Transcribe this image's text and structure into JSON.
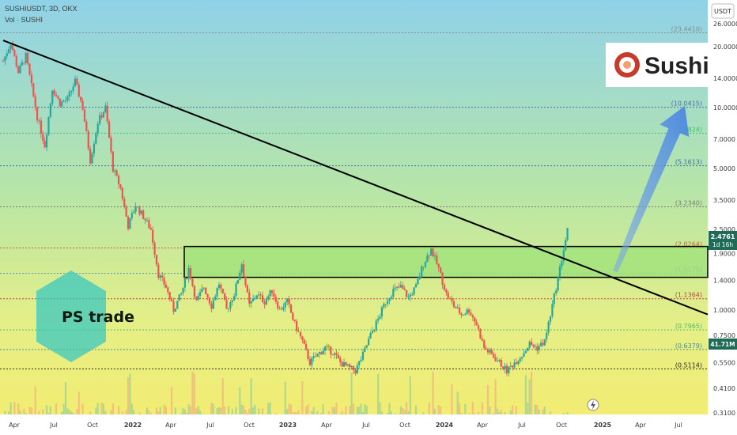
{
  "header": {
    "symbol": "SUSHIUSDT, 3D, OKX",
    "volume_label": "Vol · SUSHI"
  },
  "currency": "USDT",
  "logo_text": "Sushi",
  "brand_text": "PS trade",
  "last_price": {
    "value": "2.4761",
    "countdown": "1d 16h"
  },
  "volume_value": "41.71M",
  "colors": {
    "up": "#26a69a",
    "down": "#ef5350",
    "zone": "#9fe27a",
    "arrow": "#5b8fe0",
    "trendline": "#000000"
  },
  "chart_data": {
    "type": "candlestick",
    "y_scale": "log",
    "y_ticks": [
      "26.0000",
      "20.0000",
      "14.0000",
      "10.0000",
      "7.0000",
      "5.0000",
      "3.5000",
      "2.5000",
      "1.9000",
      "1.4000",
      "1.0000",
      "0.7500",
      "0.5500",
      "0.4100",
      "0.3100"
    ],
    "x_ticks": [
      "Apr",
      "Jul",
      "Oct",
      "2022",
      "Apr",
      "Jul",
      "Oct",
      "2023",
      "Apr",
      "Jul",
      "Oct",
      "2024",
      "Apr",
      "Jul",
      "Oct",
      "2025",
      "Apr",
      "Jul"
    ],
    "fib_levels": [
      {
        "label": "(23.4410)",
        "value": 23.441,
        "color": "#8a8a8a"
      },
      {
        "label": "(10.0415)",
        "value": 10.0415,
        "color": "#4a6fa5"
      },
      {
        "label": "(7.4824)",
        "value": 7.4824,
        "color": "#3fbf6f"
      },
      {
        "label": "(5.1613)",
        "value": 5.1613,
        "color": "#3a6ea5"
      },
      {
        "label": "(3.2340)",
        "value": 3.234,
        "color": "#7a7a7a"
      },
      {
        "label": "(2.0264)",
        "value": 2.0264,
        "color": "#c0603a"
      },
      {
        "label": "(1.5175)",
        "value": 1.5175,
        "color": "#5b8fbf"
      },
      {
        "label": "(1.1364)",
        "value": 1.1364,
        "color": "#c04040"
      },
      {
        "label": "(0.7965)",
        "value": 0.7965,
        "color": "#3fbf6f"
      },
      {
        "label": "(0.6379)",
        "value": 0.6379,
        "color": "#3a8fa5"
      },
      {
        "label": "(0.5114)",
        "value": 0.5114,
        "color": "#2a2a2a"
      }
    ],
    "zone": {
      "top": 2.06,
      "bottom": 1.45
    },
    "trendline": {
      "start": 21.5,
      "end": 0.95
    },
    "price_path": [
      [
        0,
        17
      ],
      [
        2,
        21
      ],
      [
        4,
        15
      ],
      [
        6,
        18
      ],
      [
        9,
        9
      ],
      [
        11,
        6.5
      ],
      [
        13,
        12.5
      ],
      [
        15,
        10.5
      ],
      [
        17,
        11
      ],
      [
        19,
        13.5
      ],
      [
        21,
        10
      ],
      [
        23,
        5.5
      ],
      [
        25,
        8.5
      ],
      [
        27,
        10
      ],
      [
        29,
        5
      ],
      [
        31,
        4
      ],
      [
        33,
        2.6
      ],
      [
        35,
        3.3
      ],
      [
        37,
        2.9
      ],
      [
        39,
        2.5
      ],
      [
        41,
        1.5
      ],
      [
        43,
        1.3
      ],
      [
        45,
        1.0
      ],
      [
        47,
        1.2
      ],
      [
        49,
        1.6
      ],
      [
        51,
        1.1
      ],
      [
        53,
        1.3
      ],
      [
        55,
        1.05
      ],
      [
        57,
        1.35
      ],
      [
        59,
        1.0
      ],
      [
        61,
        1.2
      ],
      [
        63,
        1.7
      ],
      [
        65,
        1.05
      ],
      [
        67,
        1.2
      ],
      [
        69,
        1.1
      ],
      [
        71,
        1.25
      ],
      [
        73,
        1.0
      ],
      [
        75,
        1.1
      ],
      [
        77,
        0.85
      ],
      [
        79,
        0.7
      ],
      [
        81,
        0.55
      ],
      [
        83,
        0.6
      ],
      [
        85,
        0.65
      ],
      [
        87,
        0.62
      ],
      [
        89,
        0.55
      ],
      [
        91,
        0.52
      ],
      [
        93,
        0.5
      ],
      [
        95,
        0.6
      ],
      [
        97,
        0.75
      ],
      [
        99,
        0.9
      ],
      [
        101,
        1.1
      ],
      [
        103,
        1.25
      ],
      [
        105,
        1.3
      ],
      [
        107,
        1.15
      ],
      [
        109,
        1.3
      ],
      [
        111,
        1.7
      ],
      [
        113,
        2.0
      ],
      [
        115,
        1.6
      ],
      [
        117,
        1.2
      ],
      [
        119,
        1.05
      ],
      [
        121,
        0.95
      ],
      [
        123,
        1.0
      ],
      [
        125,
        0.85
      ],
      [
        127,
        0.65
      ],
      [
        129,
        0.6
      ],
      [
        131,
        0.55
      ],
      [
        133,
        0.5
      ],
      [
        135,
        0.55
      ],
      [
        137,
        0.6
      ],
      [
        139,
        0.68
      ],
      [
        141,
        0.65
      ],
      [
        143,
        0.7
      ],
      [
        145,
        1.05
      ],
      [
        147,
        1.6
      ],
      [
        149,
        2.48
      ]
    ]
  }
}
